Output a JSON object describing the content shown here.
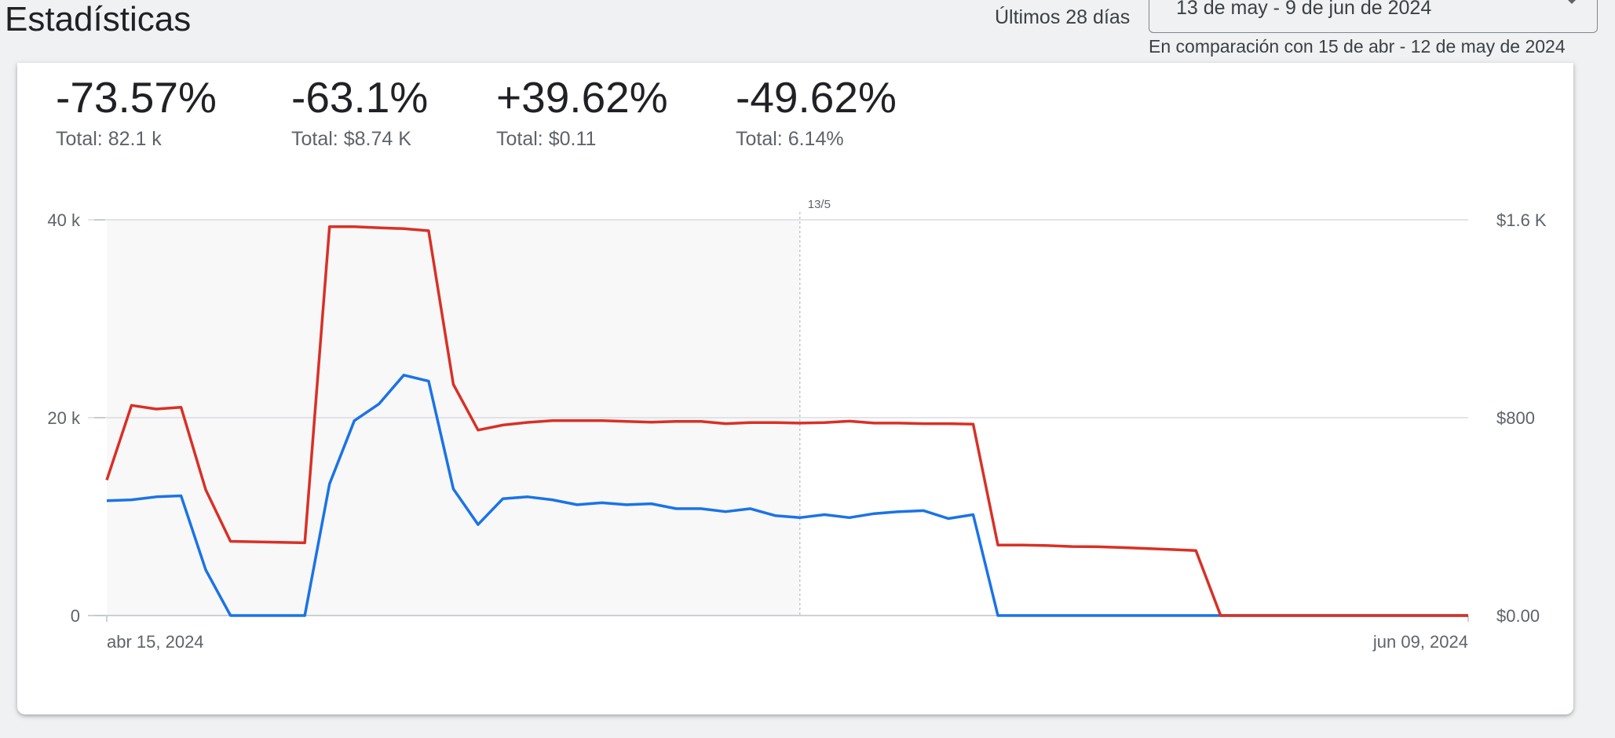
{
  "header": {
    "title": "Estadísticas",
    "range_label": "Últimos 28 días",
    "date_range": "13 de may - 9 de jun de 2024",
    "comparison": "En comparación con 15 de abr - 12 de may de 2024"
  },
  "metrics": [
    {
      "pct": "-73.57%",
      "total": "Total: 82.1 k"
    },
    {
      "pct": "-63.1%",
      "total": "Total: $8.74 K"
    },
    {
      "pct": "+39.62%",
      "total": "Total: $0.11"
    },
    {
      "pct": "-49.62%",
      "total": "Total: 6.14%"
    }
  ],
  "chart_data": {
    "type": "line",
    "x_start_label": "abr 15, 2024",
    "x_end_label": "jun 09, 2024",
    "divider_label": "13/5",
    "divider_index": 28,
    "compare_period": {
      "start_index": 0,
      "end_index": 28
    },
    "y_left": {
      "ticks": [
        "0",
        "20 k",
        "40 k"
      ],
      "tick_values": [
        0,
        20000,
        40000
      ],
      "range": [
        0,
        40000
      ]
    },
    "y_right": {
      "ticks": [
        "$0.00",
        "$800",
        "$1.6 K"
      ],
      "tick_values": [
        0,
        800,
        1600
      ],
      "range": [
        0,
        1600
      ]
    },
    "grid": true,
    "series": [
      {
        "color": "#1a73e8",
        "axis": "left",
        "values": [
          11600,
          11700,
          12000,
          12100,
          4600,
          0,
          0,
          0,
          0,
          13300,
          19700,
          21400,
          24300,
          23700,
          12800,
          9200,
          11800,
          12000,
          11700,
          11200,
          11400,
          11200,
          11300,
          10800,
          10800,
          10500,
          10800,
          10100,
          9900,
          10200,
          9900,
          10300,
          10500,
          10600,
          9800,
          10200,
          0,
          0,
          0,
          0,
          0,
          0,
          0,
          0,
          0,
          0,
          0,
          0,
          0,
          0,
          0,
          0,
          0,
          0,
          0,
          0
        ]
      },
      {
        "color": "#d93025",
        "axis": "right",
        "values": [
          548,
          850,
          835,
          842,
          508,
          300,
          298,
          296,
          294,
          1572,
          1572,
          1568,
          1564,
          1556,
          935,
          750,
          770,
          781,
          788,
          788,
          788,
          785,
          782,
          785,
          785,
          776,
          780,
          780,
          778,
          780,
          786,
          778,
          778,
          776,
          776,
          774,
          285,
          285,
          283,
          279,
          278,
          275,
          271,
          267,
          263,
          0,
          0,
          0,
          0,
          0,
          0,
          0,
          0,
          0,
          0,
          0
        ]
      }
    ]
  }
}
